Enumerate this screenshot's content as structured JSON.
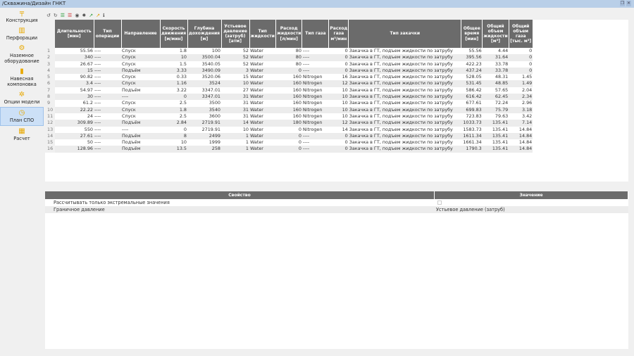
{
  "window": {
    "title": "/Скважина/Дизайн ГНКТ"
  },
  "sidebar": {
    "items": [
      {
        "label": "Конструкция",
        "icon": "construction-icon"
      },
      {
        "label": "Перфорации",
        "icon": "perforation-icon"
      },
      {
        "label": "Наземное оборудование",
        "icon": "surface-equipment-icon"
      },
      {
        "label": "Навесная компоновка",
        "icon": "bha-icon"
      },
      {
        "label": "Опции модели",
        "icon": "model-options-icon"
      },
      {
        "label": "План СПО",
        "icon": "clock-icon",
        "active": true
      },
      {
        "label": "Расчет",
        "icon": "calculator-icon"
      }
    ]
  },
  "toolbar": [
    "undo-icon",
    "redo-icon",
    "add-row-icon",
    "delete-row-icon",
    "eye-icon",
    "gear-icon",
    "chart-green-icon",
    "chart-orange-icon",
    "info-icon"
  ],
  "table": {
    "columns": [
      "Длительность [мин]",
      "Тип операции",
      "Направление",
      "Скорость движения [м/мин]",
      "Глубина дохождения [м]",
      "Устьевое давление (затруб) [атм]",
      "Тип жидкости",
      "Расход жидкости [л/мин]",
      "Тип газа",
      "Расход газа м³/мин",
      "Тип закачки",
      "Общее время [мин]",
      "Общий объем жидкости [м³]",
      "Общий объем газа [тыс. м³]"
    ],
    "rows": [
      [
        "55.56",
        "----",
        "Спуск",
        "1.8",
        "100",
        "52",
        "Water",
        "80",
        "----",
        "0",
        "Закачка в ГТ, подъем жидкости по затрубу",
        "55.56",
        "4.44",
        "0"
      ],
      [
        "340",
        "----",
        "Спуск",
        "10",
        "3500.04",
        "52",
        "Water",
        "80",
        "----",
        "0",
        "Закачка в ГТ, подъем жидкости по затрубу",
        "395.56",
        "31.64",
        "0"
      ],
      [
        "26.67",
        "----",
        "Спуск",
        "1.5",
        "3540.05",
        "52",
        "Water",
        "80",
        "----",
        "0",
        "Закачка в ГТ, подъем жидкости по затрубу",
        "422.23",
        "33.78",
        "0"
      ],
      [
        "15",
        "----",
        "Подъём",
        "3.33",
        "3490.09",
        "3",
        "Water",
        "0",
        "----",
        "0",
        "Закачка в ГТ, подъем жидкости по затрубу",
        "437.24",
        "33.78",
        "0"
      ],
      [
        "90.82",
        "----",
        "Спуск",
        "0.33",
        "3520.06",
        "15",
        "Water",
        "160",
        "Nitrogen",
        "16",
        "Закачка в ГТ, подъем жидкости по затрубу",
        "528.05",
        "48.31",
        "1.45"
      ],
      [
        "3.4",
        "----",
        "Спуск",
        "1.16",
        "3524",
        "10",
        "Water",
        "160",
        "Nitrogen",
        "12",
        "Закачка в ГТ, подъем жидкости по затрубу",
        "531.45",
        "48.85",
        "1.49"
      ],
      [
        "54.97",
        "----",
        "Подъём",
        "3.22",
        "3347.01",
        "27",
        "Water",
        "160",
        "Nitrogen",
        "10",
        "Закачка в ГТ, подъем жидкости по затрубу",
        "586.42",
        "57.65",
        "2.04"
      ],
      [
        "30",
        "----",
        "----",
        "0",
        "3347.01",
        "31",
        "Water",
        "160",
        "Nitrogen",
        "10",
        "Закачка в ГТ, подъем жидкости по затрубу",
        "616.42",
        "62.45",
        "2.34"
      ],
      [
        "61.2",
        "----",
        "Спуск",
        "2.5",
        "3500",
        "31",
        "Water",
        "160",
        "Nitrogen",
        "10",
        "Закачка в ГТ, подъем жидкости по затрубу",
        "677.61",
        "72.24",
        "2.96"
      ],
      [
        "22.22",
        "----",
        "Спуск",
        "1.8",
        "3540",
        "31",
        "Water",
        "160",
        "Nitrogen",
        "10",
        "Закачка в ГТ, подъем жидкости по затрубу",
        "699.83",
        "75.79",
        "3.18"
      ],
      [
        "24",
        "----",
        "Спуск",
        "2.5",
        "3600",
        "31",
        "Water",
        "160",
        "Nitrogen",
        "10",
        "Закачка в ГТ, подъем жидкости по затрубу",
        "723.83",
        "79.63",
        "3.42"
      ],
      [
        "309.89",
        "----",
        "Подъём",
        "2.84",
        "2719.91",
        "14",
        "Water",
        "180",
        "Nitrogen",
        "12",
        "Закачка в ГТ, подъем жидкости по затрубу",
        "1033.73",
        "135.41",
        "7.14"
      ],
      [
        "550",
        "----",
        "----",
        "0",
        "2719.91",
        "10",
        "Water",
        "0",
        "Nitrogen",
        "14",
        "Закачка в ГТ, подъем жидкости по затрубу",
        "1583.73",
        "135.41",
        "14.84"
      ],
      [
        "27.61",
        "----",
        "Подъём",
        "8",
        "2499",
        "1",
        "Water",
        "0",
        "----",
        "0",
        "Закачка в ГТ, подъем жидкости по затрубу",
        "1611.34",
        "135.41",
        "14.84"
      ],
      [
        "50",
        "----",
        "Подъём",
        "10",
        "1999",
        "1",
        "Water",
        "0",
        "----",
        "0",
        "Закачка в ГТ, подъем жидкости по затрубу",
        "1661.34",
        "135.41",
        "14.84"
      ],
      [
        "128.96",
        "----",
        "Подъём",
        "13.5",
        "258",
        "1",
        "Water",
        "0",
        "----",
        "0",
        "Закачка в ГТ, подъем жидкости по затрубу",
        "1790.3",
        "135.41",
        "14.84"
      ]
    ]
  },
  "properties": {
    "header_property": "Свойство",
    "header_value": "Значение",
    "rows": [
      {
        "name": "Рассчитывать только экстремальные значения",
        "value": "",
        "checked": false
      },
      {
        "name": "Граничное давление",
        "value": "Устьевое давление (затруб)"
      }
    ]
  },
  "colors": {
    "header": "#6b6b6b",
    "titlebar": "#b9cfe8",
    "active": "#cce0f7"
  }
}
